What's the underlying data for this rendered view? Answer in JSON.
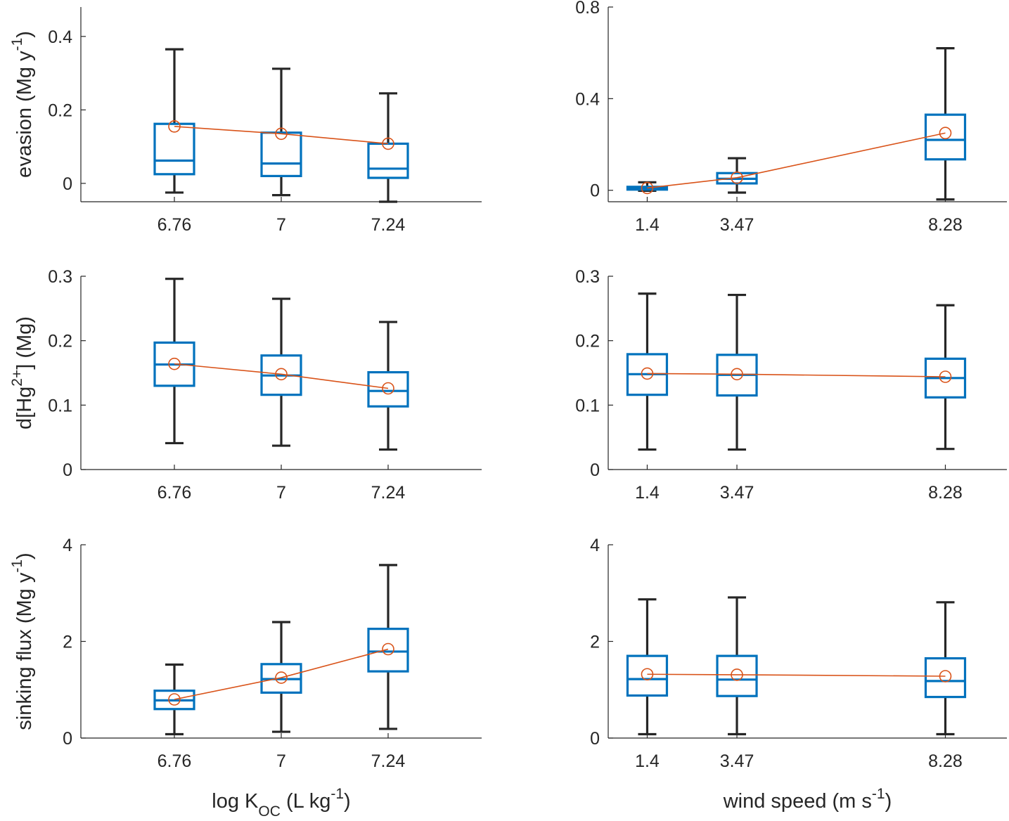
{
  "colors": {
    "box": "#0072BD",
    "mean": "#D95319",
    "whisker": "#262626",
    "axis": "#262626"
  },
  "chart_data": [
    {
      "id": "evasion-koc",
      "type": "box",
      "ylim": [
        -0.05,
        0.48
      ],
      "yticks": [
        0,
        0.2,
        0.4
      ],
      "yticklabels": [
        "0",
        "0.2",
        "0.4"
      ],
      "xlim": [
        6.55,
        7.45
      ],
      "categories": [
        "6.76",
        "7",
        "7.24"
      ],
      "x": [
        6.76,
        7.0,
        7.24
      ],
      "ylabel": {
        "text": "evasion (Mg y",
        "sup": "-1",
        "tail": ")"
      },
      "xlabel": null,
      "boxes": [
        {
          "whislo": -0.025,
          "q1": 0.025,
          "med": 0.062,
          "q3": 0.162,
          "whishi": 0.365
        },
        {
          "whislo": -0.032,
          "q1": 0.02,
          "med": 0.054,
          "q3": 0.138,
          "whishi": 0.312
        },
        {
          "whislo": -0.05,
          "q1": 0.015,
          "med": 0.04,
          "q3": 0.108,
          "whishi": 0.245
        }
      ],
      "mean": [
        0.155,
        0.135,
        0.108
      ]
    },
    {
      "id": "evasion-wind",
      "type": "box",
      "ylim": [
        -0.05,
        0.8
      ],
      "yticks": [
        0,
        0.4,
        0.8
      ],
      "yticklabels": [
        "0",
        "0.4",
        "0.8"
      ],
      "xlim": [
        0.5,
        9.7
      ],
      "categories": [
        "1.4",
        "3.47",
        "8.28"
      ],
      "x": [
        1.4,
        3.47,
        8.28
      ],
      "ylabel": null,
      "xlabel": null,
      "boxes": [
        {
          "whislo": -0.002,
          "q1": 0.003,
          "med": 0.01,
          "q3": 0.015,
          "whishi": 0.035
        },
        {
          "whislo": -0.01,
          "q1": 0.03,
          "med": 0.05,
          "q3": 0.075,
          "whishi": 0.14
        },
        {
          "whislo": -0.04,
          "q1": 0.135,
          "med": 0.22,
          "q3": 0.33,
          "whishi": 0.62
        }
      ],
      "mean": [
        0.01,
        0.055,
        0.25
      ]
    },
    {
      "id": "dhg-koc",
      "type": "box",
      "ylim": [
        0,
        0.3
      ],
      "yticks": [
        0,
        0.1,
        0.2,
        0.3
      ],
      "yticklabels": [
        "0",
        "0.1",
        "0.2",
        "0.3"
      ],
      "xlim": [
        6.55,
        7.45
      ],
      "categories": [
        "6.76",
        "7",
        "7.24"
      ],
      "x": [
        6.76,
        7.0,
        7.24
      ],
      "ylabel": {
        "text": "d[Hg",
        "sup": "2+",
        "tail": "] (Mg)"
      },
      "xlabel": null,
      "boxes": [
        {
          "whislo": 0.041,
          "q1": 0.13,
          "med": 0.163,
          "q3": 0.197,
          "whishi": 0.296
        },
        {
          "whislo": 0.037,
          "q1": 0.116,
          "med": 0.146,
          "q3": 0.177,
          "whishi": 0.265
        },
        {
          "whislo": 0.031,
          "q1": 0.098,
          "med": 0.122,
          "q3": 0.151,
          "whishi": 0.229
        }
      ],
      "mean": [
        0.164,
        0.148,
        0.126
      ]
    },
    {
      "id": "dhg-wind",
      "type": "box",
      "ylim": [
        0,
        0.3
      ],
      "yticks": [
        0,
        0.1,
        0.2,
        0.3
      ],
      "yticklabels": [
        "0",
        "0.1",
        "0.2",
        "0.3"
      ],
      "xlim": [
        0.5,
        9.7
      ],
      "categories": [
        "1.4",
        "3.47",
        "8.28"
      ],
      "x": [
        1.4,
        3.47,
        8.28
      ],
      "ylabel": null,
      "xlabel": null,
      "boxes": [
        {
          "whislo": 0.031,
          "q1": 0.116,
          "med": 0.148,
          "q3": 0.179,
          "whishi": 0.273
        },
        {
          "whislo": 0.031,
          "q1": 0.115,
          "med": 0.147,
          "q3": 0.178,
          "whishi": 0.271
        },
        {
          "whislo": 0.032,
          "q1": 0.112,
          "med": 0.142,
          "q3": 0.172,
          "whishi": 0.255
        }
      ],
      "mean": [
        0.149,
        0.148,
        0.144
      ]
    },
    {
      "id": "sinking-koc",
      "type": "box",
      "ylim": [
        0,
        4
      ],
      "yticks": [
        0,
        2,
        4
      ],
      "yticklabels": [
        "0",
        "2",
        "4"
      ],
      "xlim": [
        6.55,
        7.45
      ],
      "categories": [
        "6.76",
        "7",
        "7.24"
      ],
      "x": [
        6.76,
        7.0,
        7.24
      ],
      "ylabel": {
        "text": "sinking flux (Mg y",
        "sup": "-1",
        "tail": ")"
      },
      "xlabel": {
        "text": "log K",
        "sub": "OC",
        "mid": " (L kg",
        "sup": "-1",
        "tail": ")"
      },
      "boxes": [
        {
          "whislo": 0.08,
          "q1": 0.6,
          "med": 0.78,
          "q3": 0.98,
          "whishi": 1.52
        },
        {
          "whislo": 0.13,
          "q1": 0.94,
          "med": 1.22,
          "q3": 1.53,
          "whishi": 2.4
        },
        {
          "whislo": 0.19,
          "q1": 1.38,
          "med": 1.79,
          "q3": 2.26,
          "whishi": 3.58
        }
      ],
      "mean": [
        0.8,
        1.25,
        1.84
      ]
    },
    {
      "id": "sinking-wind",
      "type": "box",
      "ylim": [
        0,
        4
      ],
      "yticks": [
        0,
        2,
        4
      ],
      "yticklabels": [
        "0",
        "2",
        "4"
      ],
      "xlim": [
        0.5,
        9.7
      ],
      "categories": [
        "1.4",
        "3.47",
        "8.28"
      ],
      "x": [
        1.4,
        3.47,
        8.28
      ],
      "ylabel": null,
      "xlabel": {
        "text": "wind speed (m s",
        "sup": "-1",
        "tail": ")"
      },
      "boxes": [
        {
          "whislo": 0.08,
          "q1": 0.88,
          "med": 1.22,
          "q3": 1.7,
          "whishi": 2.87
        },
        {
          "whislo": 0.08,
          "q1": 0.87,
          "med": 1.21,
          "q3": 1.7,
          "whishi": 2.91
        },
        {
          "whislo": 0.08,
          "q1": 0.85,
          "med": 1.18,
          "q3": 1.65,
          "whishi": 2.81
        }
      ],
      "mean": [
        1.32,
        1.31,
        1.28
      ]
    }
  ]
}
